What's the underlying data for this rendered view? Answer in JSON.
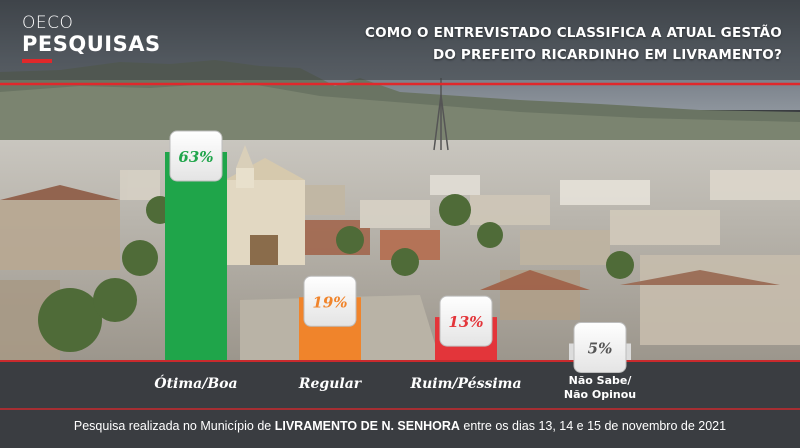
{
  "brand": {
    "line1": "OECO",
    "line2": "PESQUISAS"
  },
  "title": {
    "line1": "COMO O ENTREVISTADO CLASSIFICA A ATUAL GESTÃO",
    "line2": "DO PREFEITO RICARDINHO EM LIVRAMENTO?"
  },
  "footer": {
    "prefix": "Pesquisa realizada no Município de ",
    "place": "LIVRAMENTO DE N. SENHORA",
    "suffix": " entre os dias 13, 14 e 15 de novembro de 2021"
  },
  "chart_data": {
    "type": "bar",
    "categories": [
      "Ótima/Boa",
      "Regular",
      "Ruim/Péssima",
      "Não Sabe/ Não Opinou"
    ],
    "category_lines": [
      [
        "Ótima/Boa"
      ],
      [
        "Regular"
      ],
      [
        "Ruim/Péssima"
      ],
      [
        "Não Sabe/",
        "Não Opinou"
      ]
    ],
    "values": [
      63,
      19,
      13,
      5
    ],
    "value_labels": [
      "63%",
      "19%",
      "13%",
      "5%"
    ],
    "colors": [
      "#1fa54a",
      "#f0842b",
      "#e3353a",
      "#dcdcdc"
    ],
    "label_colors": [
      "#1fa54a",
      "#f0842b",
      "#e3353a",
      "#555555"
    ],
    "ylim": [
      0,
      63
    ]
  }
}
